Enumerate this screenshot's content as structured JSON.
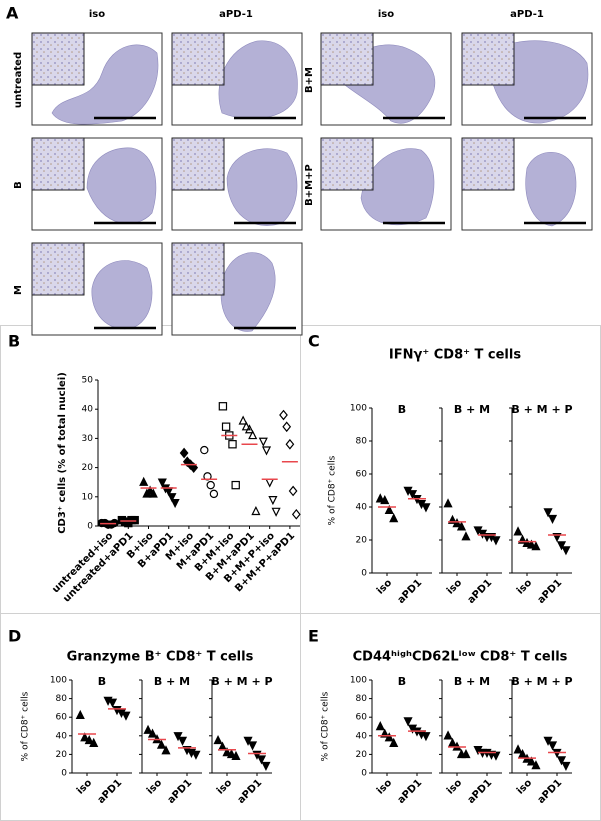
{
  "panel_a": {
    "label": "A",
    "column_headers": [
      "iso",
      "aPD-1",
      "iso",
      "aPD-1"
    ],
    "row_labels": [
      "untreated",
      "B",
      "M",
      "B+M",
      "B+M+P"
    ]
  },
  "chart_data": [
    {
      "type": "dot",
      "panel_label": "B",
      "y_label": "CD3⁺ cells (% of total nuclei)",
      "categories": [
        "untreated+iso",
        "untreated+aPD1",
        "B+iso",
        "B+aPD1",
        "M+iso",
        "M+aPD1",
        "B+M+iso",
        "B+M+aPD1",
        "B+M+P+iso",
        "B+M+P+aPD1"
      ],
      "markers": [
        "circle",
        "square",
        "triangle",
        "triangle-down",
        "diamond",
        "circle",
        "square",
        "triangle",
        "triangle-down",
        "diamond"
      ],
      "filled": [
        true,
        true,
        true,
        true,
        true,
        false,
        false,
        false,
        false,
        false
      ],
      "color": "#000000",
      "mean_color": "#e8474c",
      "values": [
        [
          1,
          1,
          0.5,
          0.5,
          1
        ],
        [
          2,
          1.5,
          1,
          2,
          2
        ],
        [
          15,
          11,
          12,
          11
        ],
        [
          15,
          13,
          12,
          10,
          8
        ],
        [
          25,
          22,
          21,
          20
        ],
        [
          26,
          17,
          14,
          11
        ],
        [
          41,
          34,
          31,
          28,
          14
        ],
        [
          36,
          34,
          33,
          31,
          5
        ],
        [
          29,
          26,
          15,
          9,
          5
        ],
        [
          38,
          34,
          28,
          12,
          4
        ]
      ],
      "means": [
        0.8,
        1.7,
        13,
        13,
        21,
        16,
        31,
        28,
        16,
        22
      ],
      "ylim": [
        0,
        50
      ],
      "yticks": [
        0,
        10,
        20,
        30,
        40,
        50
      ]
    },
    {
      "type": "dot-panels",
      "panel_label": "C",
      "title": "IFNγ⁺ CD8⁺ T cells",
      "y_label": "% of CD8⁺ cells",
      "categories": [
        "iso",
        "aPD1"
      ],
      "markers": [
        "triangle",
        "triangle-down"
      ],
      "color": "#000000",
      "mean_color": "#e8474c",
      "ylim": [
        0,
        100
      ],
      "yticks": [
        0,
        20,
        40,
        60,
        80,
        100
      ],
      "subplots": [
        {
          "title": "B",
          "values": [
            [
              45,
              44,
              38,
              33
            ],
            [
              50,
              48,
              45,
              42,
              40
            ]
          ],
          "means": [
            40,
            45
          ]
        },
        {
          "title": "B + M",
          "values": [
            [
              42,
              32,
              30,
              28,
              22
            ],
            [
              26,
              24,
              22,
              22,
              20
            ]
          ],
          "means": [
            31,
            23
          ]
        },
        {
          "title": "B + M + P",
          "values": [
            [
              25,
              20,
              18,
              17,
              16
            ],
            [
              37,
              33,
              22,
              17,
              14
            ]
          ],
          "means": [
            19,
            23
          ]
        }
      ]
    },
    {
      "type": "dot-panels",
      "panel_label": "D",
      "title": "Granzyme B⁺ CD8⁺ T cells",
      "y_label": "% of CD8⁺ cells",
      "categories": [
        "iso",
        "aPD1"
      ],
      "markers": [
        "triangle",
        "triangle-down"
      ],
      "color": "#000000",
      "mean_color": "#e8474c",
      "ylim": [
        0,
        100
      ],
      "yticks": [
        0,
        20,
        40,
        60,
        80,
        100
      ],
      "subplots": [
        {
          "title": "B",
          "values": [
            [
              62,
              38,
              35,
              32
            ],
            [
              78,
              76,
              68,
              65,
              62
            ]
          ],
          "means": [
            42,
            69
          ]
        },
        {
          "title": "B + M",
          "values": [
            [
              46,
              42,
              36,
              30,
              24
            ],
            [
              40,
              35,
              25,
              22,
              20
            ]
          ],
          "means": [
            36,
            27
          ]
        },
        {
          "title": "B + M + P",
          "values": [
            [
              35,
              28,
              22,
              20,
              18
            ],
            [
              35,
              30,
              20,
              15,
              8
            ]
          ],
          "means": [
            25,
            21
          ]
        }
      ]
    },
    {
      "type": "dot-panels",
      "panel_label": "E",
      "title": "CD44ʰⁱᵍʰCD62Lˡᵒʷ CD8⁺ T cells",
      "y_label": "% of CD8⁺ cells",
      "categories": [
        "iso",
        "aPD1"
      ],
      "markers": [
        "triangle",
        "triangle-down"
      ],
      "color": "#000000",
      "mean_color": "#e8474c",
      "ylim": [
        0,
        100
      ],
      "yticks": [
        0,
        20,
        40,
        60,
        80,
        100
      ],
      "subplots": [
        {
          "title": "B",
          "values": [
            [
              50,
              42,
              38,
              32
            ],
            [
              56,
              48,
              45,
              42,
              40
            ]
          ],
          "means": [
            40,
            45
          ]
        },
        {
          "title": "B + M",
          "values": [
            [
              40,
              32,
              28,
              20,
              20
            ],
            [
              25,
              22,
              22,
              20,
              19
            ]
          ],
          "means": [
            28,
            22
          ]
        },
        {
          "title": "B + M + P",
          "values": [
            [
              25,
              20,
              15,
              12,
              8
            ],
            [
              35,
              30,
              22,
              14,
              8
            ]
          ],
          "means": [
            16,
            22
          ]
        }
      ]
    }
  ]
}
